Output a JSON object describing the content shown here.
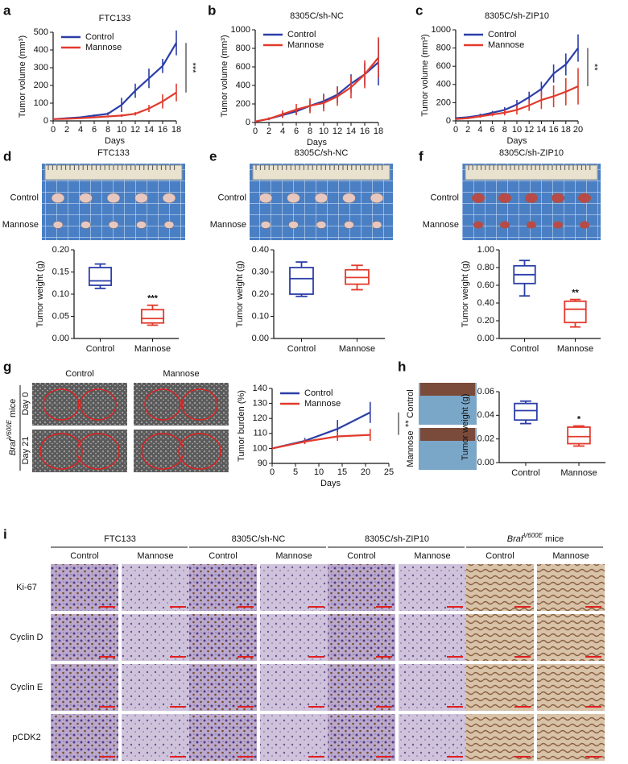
{
  "chart_data": [
    {
      "panel": "a",
      "type": "line",
      "title": "FTC133",
      "x_label": "Days",
      "y_label": "Tumor volume (mm³)",
      "x": [
        0,
        2,
        4,
        6,
        8,
        10,
        12,
        14,
        16,
        18
      ],
      "xlim": [
        0,
        18
      ],
      "xticks": [
        0,
        2,
        4,
        6,
        8,
        10,
        12,
        14,
        16,
        18
      ],
      "ylim": [
        0,
        500
      ],
      "yticks": [
        0,
        100,
        200,
        300,
        400,
        500
      ],
      "series": [
        {
          "name": "Control",
          "color": "#2b3ea8",
          "values": [
            10,
            15,
            20,
            30,
            40,
            90,
            170,
            240,
            310,
            440
          ],
          "errors": [
            3,
            4,
            5,
            6,
            8,
            40,
            40,
            55,
            40,
            70
          ]
        },
        {
          "name": "Mannose",
          "color": "#e23a2c",
          "values": [
            10,
            12,
            15,
            20,
            25,
            30,
            40,
            70,
            110,
            160
          ],
          "errors": [
            2,
            2,
            3,
            4,
            5,
            8,
            10,
            20,
            40,
            50
          ]
        }
      ],
      "significance": "***"
    },
    {
      "panel": "b",
      "type": "line",
      "title": "8305C/sh-NC",
      "x_label": "Days",
      "y_label": "Tumor volume (mm³)",
      "x": [
        0,
        2,
        4,
        6,
        8,
        10,
        12,
        14,
        16,
        18
      ],
      "xlim": [
        0,
        18
      ],
      "xticks": [
        0,
        2,
        4,
        6,
        8,
        10,
        12,
        14,
        16,
        18
      ],
      "ylim": [
        0,
        1000
      ],
      "yticks": [
        0,
        200,
        400,
        600,
        800,
        1000
      ],
      "series": [
        {
          "name": "Control",
          "color": "#2b3ea8",
          "values": [
            10,
            40,
            80,
            120,
            180,
            230,
            300,
            420,
            520,
            650
          ],
          "errors": [
            5,
            15,
            30,
            40,
            60,
            80,
            90,
            100,
            120,
            250
          ]
        },
        {
          "name": "Mannose",
          "color": "#e23a2c",
          "values": [
            10,
            40,
            90,
            140,
            180,
            210,
            280,
            380,
            520,
            700
          ],
          "errors": [
            5,
            15,
            40,
            60,
            80,
            90,
            100,
            120,
            150,
            220
          ]
        }
      ]
    },
    {
      "panel": "c",
      "type": "line",
      "title": "8305C/sh-ZIP10",
      "x_label": "Days",
      "y_label": "Tumor volume (mm³)",
      "x": [
        0,
        2,
        4,
        6,
        8,
        10,
        12,
        14,
        16,
        18,
        20
      ],
      "xlim": [
        0,
        20
      ],
      "xticks": [
        0,
        2,
        4,
        6,
        8,
        10,
        12,
        14,
        16,
        18,
        20
      ],
      "ylim": [
        0,
        1000
      ],
      "yticks": [
        0,
        200,
        400,
        600,
        800,
        1000
      ],
      "series": [
        {
          "name": "Control",
          "color": "#2b3ea8",
          "values": [
            30,
            40,
            60,
            90,
            120,
            180,
            260,
            350,
            520,
            620,
            800
          ],
          "errors": [
            10,
            10,
            20,
            20,
            30,
            50,
            60,
            80,
            100,
            120,
            150
          ]
        },
        {
          "name": "Mannose",
          "color": "#e23a2c",
          "values": [
            20,
            30,
            50,
            70,
            90,
            120,
            170,
            230,
            270,
            320,
            380
          ],
          "errors": [
            10,
            10,
            15,
            20,
            30,
            50,
            60,
            100,
            120,
            150,
            200
          ]
        }
      ],
      "significance": "**"
    },
    {
      "type": "box",
      "y_label": "Tumor weight (g)",
      "categories": [
        "Control",
        "Mannose"
      ],
      "colors": [
        "#2b3ea8",
        "#e23a2c"
      ],
      "ylim": [
        0,
        0.2
      ],
      "yticks": [
        {
          "value": 0,
          "label": "0.00"
        },
        {
          "value": 0.05,
          "label": "0.05"
        },
        {
          "value": 0.1,
          "label": "0.10"
        },
        {
          "value": 0.15,
          "label": "0.15"
        },
        {
          "value": 0.2,
          "label": "0.20"
        }
      ],
      "boxes": [
        {
          "min": 0.113,
          "q1": 0.12,
          "median": 0.13,
          "q3": 0.16,
          "max": 0.168
        },
        {
          "min": 0.03,
          "q1": 0.035,
          "median": 0.045,
          "q3": 0.065,
          "max": 0.075
        }
      ],
      "significance": "***"
    },
    {
      "type": "box",
      "y_label": "Tumor weight (g)",
      "categories": [
        "Control",
        "Mannose"
      ],
      "colors": [
        "#2b3ea8",
        "#e23a2c"
      ],
      "ylim": [
        0,
        0.4
      ],
      "yticks": [
        {
          "value": 0,
          "label": "0.00"
        },
        {
          "value": 0.1,
          "label": "0.10"
        },
        {
          "value": 0.2,
          "label": "0.20"
        },
        {
          "value": 0.3,
          "label": "0.30"
        },
        {
          "value": 0.4,
          "label": "0.40"
        }
      ],
      "boxes": [
        {
          "min": 0.19,
          "q1": 0.2,
          "median": 0.27,
          "q3": 0.32,
          "max": 0.345
        },
        {
          "min": 0.22,
          "q1": 0.245,
          "median": 0.275,
          "q3": 0.31,
          "max": 0.33
        }
      ]
    },
    {
      "type": "box",
      "y_label": "Tumor weight (g)",
      "categories": [
        "Control",
        "Mannose"
      ],
      "colors": [
        "#2b3ea8",
        "#e23a2c"
      ],
      "ylim": [
        0,
        1
      ],
      "yticks": [
        {
          "value": 0,
          "label": "0.00"
        },
        {
          "value": 0.2,
          "label": "0.20"
        },
        {
          "value": 0.4,
          "label": "0.40"
        },
        {
          "value": 0.6,
          "label": "0.60"
        },
        {
          "value": 0.8,
          "label": "0.80"
        },
        {
          "value": 1,
          "label": "1.00"
        }
      ],
      "boxes": [
        {
          "min": 0.48,
          "q1": 0.62,
          "median": 0.72,
          "q3": 0.82,
          "max": 0.88
        },
        {
          "min": 0.13,
          "q1": 0.18,
          "median": 0.33,
          "q3": 0.42,
          "max": 0.44
        }
      ],
      "significance": "**"
    },
    {
      "type": "line",
      "x_label": "Days",
      "y_label": "Tumor burden (%)",
      "x": [
        0,
        7,
        14,
        21
      ],
      "xlim": [
        0,
        25
      ],
      "xticks": [
        0,
        5,
        10,
        15,
        20,
        25
      ],
      "ylim": [
        90,
        140
      ],
      "yticks": [
        90,
        100,
        110,
        120,
        130,
        140
      ],
      "series": [
        {
          "name": "Control",
          "color": "#2b3ea8",
          "values": [
            100,
            105,
            113,
            124
          ],
          "errors": [
            0,
            2,
            6,
            7
          ]
        },
        {
          "name": "Mannose",
          "color": "#e23a2c",
          "values": [
            100,
            104.5,
            108,
            109
          ],
          "errors": [
            0,
            1.5,
            3,
            4
          ]
        }
      ],
      "significance": "**"
    },
    {
      "type": "box",
      "y_label": "Tumor weight (g)",
      "categories": [
        "Control",
        "Mannose"
      ],
      "colors": [
        "#2b3ea8",
        "#e23a2c"
      ],
      "ylim": [
        0,
        0.06
      ],
      "yticks": [
        {
          "value": 0,
          "label": "0.00"
        },
        {
          "value": 0.02,
          "label": "0.02"
        },
        {
          "value": 0.04,
          "label": "0.04"
        },
        {
          "value": 0.06,
          "label": "0.06"
        }
      ],
      "boxes": [
        {
          "min": 0.033,
          "q1": 0.036,
          "median": 0.044,
          "q3": 0.05,
          "max": 0.052
        },
        {
          "min": 0.014,
          "q1": 0.016,
          "median": 0.022,
          "q3": 0.03,
          "max": 0.031
        }
      ],
      "significance": "*"
    }
  ],
  "photos": [
    {
      "panel": "d",
      "title": "FTC133",
      "rows": [
        "Control",
        "Mannose"
      ]
    },
    {
      "panel": "e",
      "title": "8305C/sh-NC",
      "rows": [
        "Control",
        "Mannose"
      ]
    },
    {
      "panel": "f",
      "title": "8305C/sh-ZIP10",
      "rows": [
        "Control",
        "Mannose"
      ]
    }
  ],
  "ultrasound": {
    "panel": "g",
    "columns": [
      "Control",
      "Mannose"
    ],
    "rows": [
      "Day 0",
      "Day 21"
    ],
    "mouse": {
      "gene": "Braf",
      "allele": "V600E",
      "suffix": " mice"
    }
  },
  "gross": {
    "panel": "h",
    "rows": [
      "Control",
      "Mannose"
    ]
  },
  "ihc": {
    "panel": "i",
    "groups": [
      {
        "title": "FTC133",
        "columns": [
          "Control",
          "Mannose"
        ]
      },
      {
        "title": "8305C/sh-NC",
        "columns": [
          "Control",
          "Mannose"
        ]
      },
      {
        "title": "8305C/sh-ZIP10",
        "columns": [
          "Control",
          "Mannose"
        ]
      },
      {
        "title": {
          "gene": "Braf",
          "allele": "V600E",
          "suffix": " mice"
        },
        "columns": [
          "Control",
          "Mannose"
        ]
      }
    ],
    "rows": [
      "Ki-67",
      "Cyclin D",
      "Cyclin E",
      "pCDK2"
    ]
  }
}
